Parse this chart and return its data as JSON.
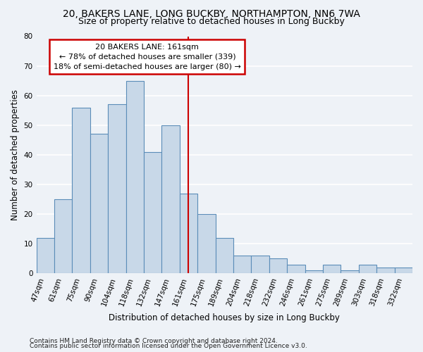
{
  "title1": "20, BAKERS LANE, LONG BUCKBY, NORTHAMPTON, NN6 7WA",
  "title2": "Size of property relative to detached houses in Long Buckby",
  "xlabel": "Distribution of detached houses by size in Long Buckby",
  "ylabel": "Number of detached properties",
  "footnote1": "Contains HM Land Registry data © Crown copyright and database right 2024.",
  "footnote2": "Contains public sector information licensed under the Open Government Licence v3.0.",
  "categories": [
    "47sqm",
    "61sqm",
    "75sqm",
    "90sqm",
    "104sqm",
    "118sqm",
    "132sqm",
    "147sqm",
    "161sqm",
    "175sqm",
    "189sqm",
    "204sqm",
    "218sqm",
    "232sqm",
    "246sqm",
    "261sqm",
    "275sqm",
    "289sqm",
    "303sqm",
    "318sqm",
    "332sqm"
  ],
  "values": [
    12,
    25,
    56,
    47,
    57,
    65,
    41,
    50,
    27,
    20,
    12,
    6,
    6,
    5,
    3,
    1,
    3,
    1,
    3,
    2,
    2
  ],
  "bar_color": "#c8d8e8",
  "bar_edge_color": "#5b8db8",
  "vline_index": 8,
  "vline_color": "#cc0000",
  "annotation_text": "20 BAKERS LANE: 161sqm\n← 78% of detached houses are smaller (339)\n18% of semi-detached houses are larger (80) →",
  "annotation_box_color": "#cc0000",
  "ylim": [
    0,
    80
  ],
  "yticks": [
    0,
    10,
    20,
    30,
    40,
    50,
    60,
    70,
    80
  ],
  "bg_color": "#eef2f7",
  "grid_color": "#ffffff",
  "title_fontsize": 10,
  "subtitle_fontsize": 9,
  "axis_label_fontsize": 8.5,
  "tick_fontsize": 7.5,
  "footnote_fontsize": 6.5
}
